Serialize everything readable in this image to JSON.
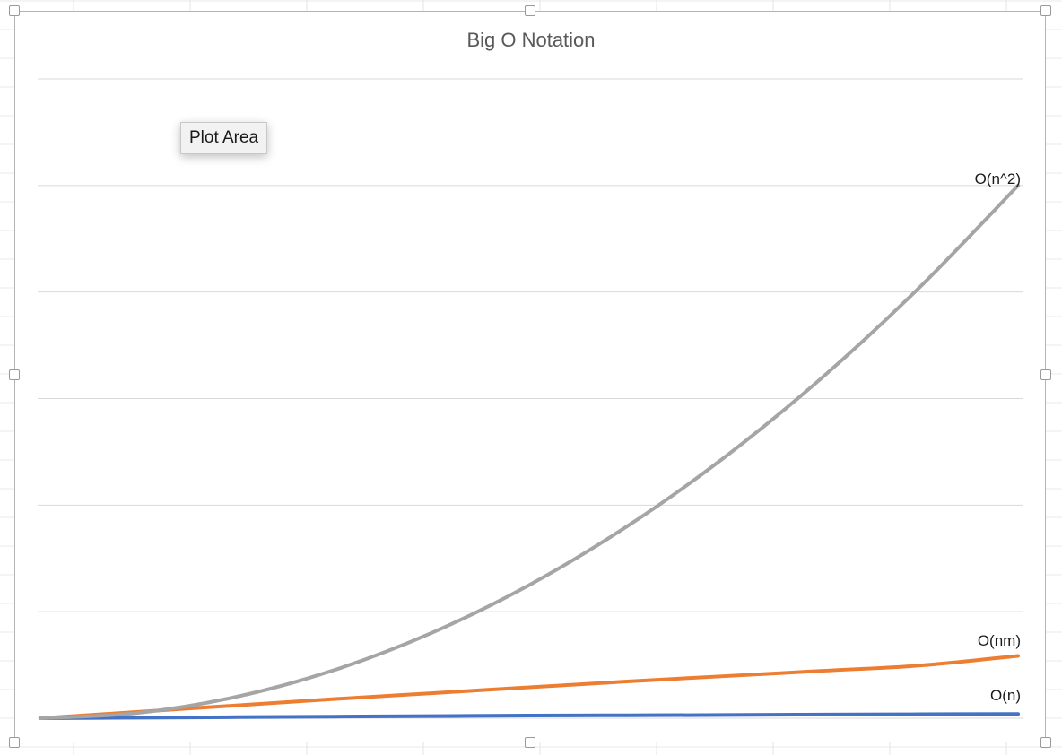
{
  "colors": {
    "series_n": "#4472C4",
    "series_nm": "#ED7D31",
    "series_n2": "#A5A5A5",
    "gridline": "#d9d9d9",
    "title": "#595959"
  },
  "tooltip": {
    "label": "Plot Area"
  },
  "chart_data": {
    "type": "line",
    "title": "Big O Notation",
    "xlabel": "",
    "ylabel": "",
    "axes_visible": false,
    "grid": true,
    "horizontal_gridline_count": 6,
    "ylim": [
      0,
      120
    ],
    "x": [
      0,
      1,
      2,
      3,
      4,
      5,
      6,
      7,
      8,
      9,
      10
    ],
    "series": [
      {
        "name": "O(n)",
        "color": "#4472C4",
        "values": [
          0,
          0.1,
          0.2,
          0.3,
          0.4,
          0.5,
          0.55,
          0.6,
          0.7,
          0.75,
          0.8
        ]
      },
      {
        "name": "O(nm)",
        "color": "#ED7D31",
        "values": [
          0,
          1.2,
          2.4,
          3.6,
          4.7,
          5.8,
          6.9,
          7.9,
          8.9,
          9.9,
          11.7
        ]
      },
      {
        "name": "O(n^2)",
        "color": "#A5A5A5",
        "values": [
          0,
          1.0,
          4.0,
          9.0,
          16.0,
          25.0,
          36.0,
          49.0,
          64.0,
          81.0,
          100.0
        ]
      }
    ]
  }
}
